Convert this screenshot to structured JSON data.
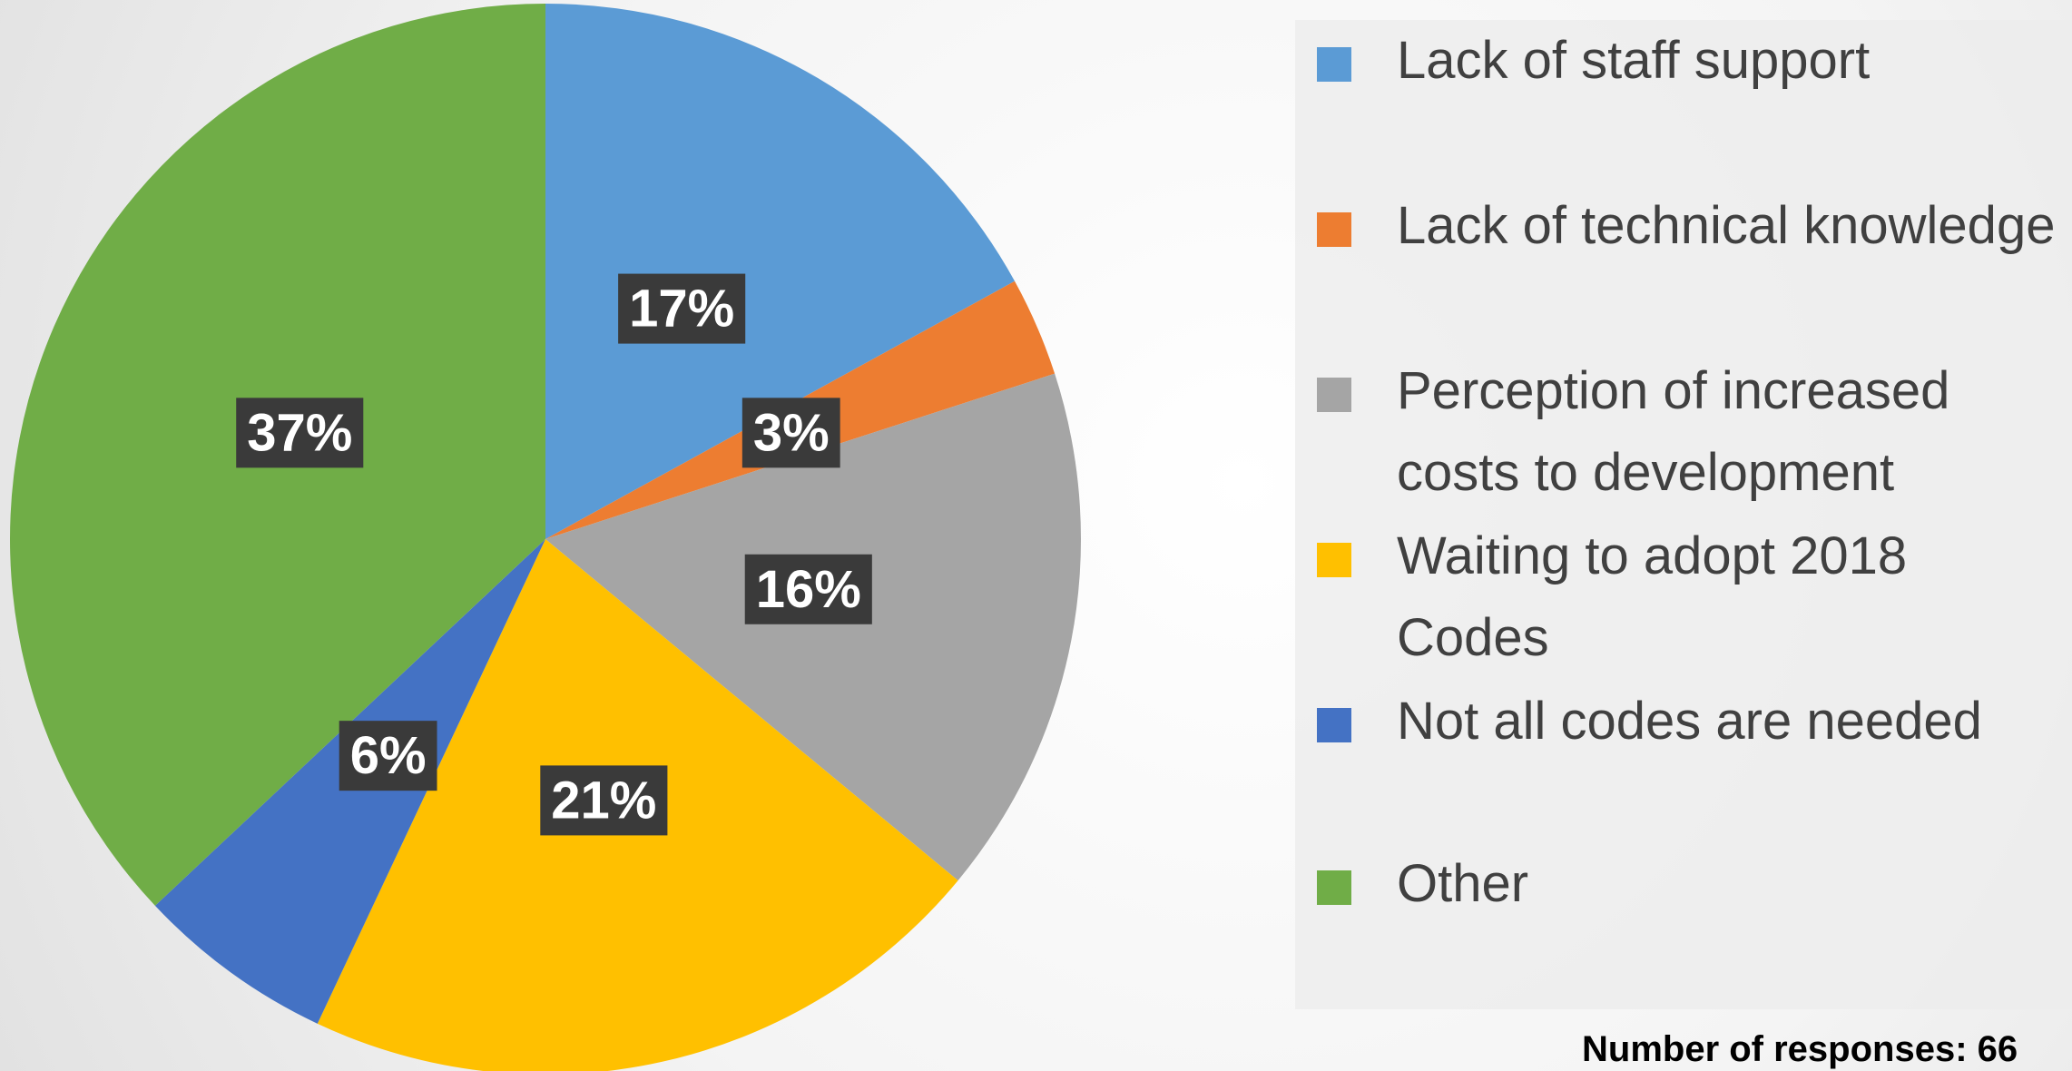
{
  "chart_data": {
    "type": "pie",
    "categories": [
      "Lack of staff support",
      "Lack of technical knowledge",
      "Perception of increased costs to development",
      "Waiting to adopt 2018 Codes",
      "Not all codes are needed",
      "Other"
    ],
    "values": [
      17,
      3,
      16,
      21,
      6,
      37
    ],
    "value_labels": [
      "17%",
      "3%",
      "16%",
      "21%",
      "6%",
      "37%"
    ],
    "colors": [
      "#5b9bd5",
      "#ed7d31",
      "#a5a5a5",
      "#ffc000",
      "#4472c4",
      "#70ad47"
    ],
    "legend": "right",
    "annotation": "Number of responses: 66"
  }
}
